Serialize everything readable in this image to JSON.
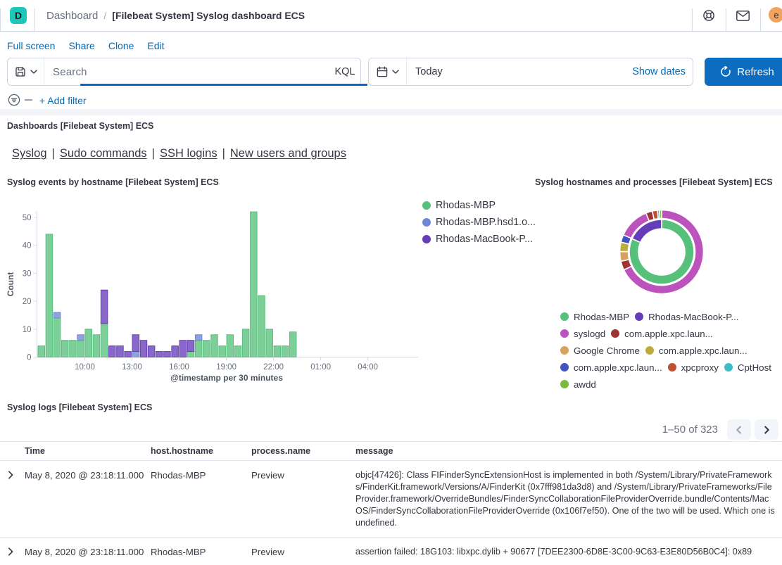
{
  "header": {
    "app_letter": "D",
    "breadcrumb_section": "Dashboard",
    "breadcrumb_separator": "/",
    "breadcrumb_current": "[Filebeat System] Syslog dashboard ECS",
    "avatar_initial": "e",
    "logo_color": "#1dc7b9",
    "avatar_color": "#efa35f"
  },
  "menu_items": [
    "Full screen",
    "Share",
    "Clone",
    "Edit"
  ],
  "query_bar": {
    "placeholder": "Search",
    "language_label": "KQL",
    "date_value": "Today",
    "show_dates_label": "Show dates",
    "refresh_label": "Refresh",
    "add_filter_label": "+ Add filter"
  },
  "markdown_panel": {
    "title": "Dashboards [Filebeat System] ECS",
    "links": [
      "Syslog",
      "Sudo commands",
      "SSH logins",
      "New users and groups"
    ],
    "separator": "|"
  },
  "histogram_panel": {
    "title": "Syslog events by hostname [Filebeat System] ECS",
    "legend": [
      {
        "label": "Rhodas-MBP",
        "color": "#57c17b"
      },
      {
        "label": "Rhodas-MBP.hsd1.o...",
        "color": "#6f87d8"
      },
      {
        "label": "Rhodas-MacBook-P...",
        "color": "#663db8"
      }
    ]
  },
  "pie_panel": {
    "title": "Syslog hostnames and processes [Filebeat System] ECS",
    "legend_rows": [
      [
        {
          "label": "Rhodas-MBP",
          "color": "#57c17b"
        },
        {
          "label": "Rhodas-MacBook-P...",
          "color": "#663db8"
        }
      ],
      [
        {
          "label": "syslogd",
          "color": "#bc52bc"
        },
        {
          "label": "com.apple.xpc.laun...",
          "color": "#9e3533"
        }
      ],
      [
        {
          "label": "Google Chrome",
          "color": "#daa05d"
        },
        {
          "label": "com.apple.xpc.laun...",
          "color": "#bfab3d"
        }
      ],
      [
        {
          "label": "com.apple.xpc.laun...",
          "color": "#4053bf"
        },
        {
          "label": "xpcproxy",
          "color": "#bf4f33"
        },
        {
          "label": "CptHost",
          "color": "#3fbcc9"
        }
      ],
      [
        {
          "label": "awdd",
          "color": "#77bb40"
        }
      ]
    ]
  },
  "table_panel": {
    "title": "Syslog logs [Filebeat System] ECS",
    "pagination_label": "1–50 of 323",
    "columns": [
      "Time",
      "host.hostname",
      "process.name",
      "message"
    ],
    "rows": [
      {
        "time": "May 8, 2020 @ 23:18:11.000",
        "host": "Rhodas-MBP",
        "process": "Preview",
        "message": "objc[47426]: Class FIFinderSyncExtensionHost is implemented in both /System/Library/PrivateFrameworks/FinderKit.framework/Versions/A/FinderKit (0x7fff981da3d8) and /System/Library/PrivateFrameworks/FileProvider.framework/OverrideBundles/FinderSyncCollaborationFileProviderOverride.bundle/Contents/MacOS/FinderSyncCollaborationFileProviderOverride (0x106f7ef50). One of the two will be used. Which one is undefined."
      },
      {
        "time": "May 8, 2020 @ 23:18:11.000",
        "host": "Rhodas-MBP",
        "process": "Preview",
        "message": "assertion failed: 18G103: libxpc.dylib + 90677 [7DEE2300-6D8E-3C00-9C63-E3E80D56B0C4]: 0x89"
      }
    ]
  },
  "chart_data": [
    {
      "type": "bar",
      "title": "Syslog events by hostname [Filebeat System] ECS",
      "stacked": true,
      "xlabel": "@timestamp per 30 minutes",
      "ylabel": "Count",
      "ylim": [
        0,
        55
      ],
      "y_ticks": [
        0,
        10,
        20,
        30,
        40,
        50
      ],
      "x_tick_labels": [
        "10:00",
        "13:00",
        "16:00",
        "19:00",
        "22:00",
        "01:00",
        "04:00"
      ],
      "x_tick_slots": [
        6,
        12,
        18,
        24,
        30,
        36,
        42
      ],
      "categories": [
        "07:00",
        "07:30",
        "08:00",
        "08:30",
        "09:00",
        "09:30",
        "10:00",
        "10:30",
        "11:00",
        "11:30",
        "12:00",
        "12:30",
        "13:00",
        "13:30",
        "14:00",
        "14:30",
        "15:00",
        "15:30",
        "16:00",
        "16:30",
        "17:00",
        "17:30",
        "18:00",
        "18:30",
        "19:00",
        "19:30",
        "20:00",
        "20:30",
        "21:00",
        "21:30",
        "22:00",
        "22:30",
        "23:00"
      ],
      "legend_position": "right",
      "series": [
        {
          "name": "Rhodas-MBP",
          "color": "#57c17b",
          "values": [
            4,
            44,
            14,
            6,
            6,
            6,
            10,
            8,
            12,
            0,
            0,
            0,
            0,
            0,
            0,
            0,
            0,
            0,
            0,
            2,
            6,
            6,
            8,
            4,
            8,
            4,
            10,
            52,
            22,
            10,
            4,
            4,
            9
          ]
        },
        {
          "name": "Rhodas-MBP.hsd1.o...",
          "color": "#6f87d8",
          "values": [
            0,
            0,
            2,
            0,
            0,
            2,
            0,
            0,
            0,
            0,
            0,
            0,
            2,
            0,
            0,
            0,
            0,
            0,
            0,
            0,
            2,
            0,
            0,
            0,
            0,
            0,
            0,
            0,
            0,
            0,
            0,
            0,
            0
          ]
        },
        {
          "name": "Rhodas-MacBook-P...",
          "color": "#663db8",
          "values": [
            0,
            0,
            0,
            0,
            0,
            0,
            0,
            0,
            12,
            4,
            4,
            2,
            6,
            6,
            4,
            2,
            2,
            4,
            6,
            4,
            0,
            0,
            0,
            0,
            0,
            0,
            0,
            0,
            0,
            0,
            0,
            0,
            0
          ]
        }
      ]
    },
    {
      "type": "pie",
      "title": "Syslog hostnames and processes [Filebeat System] ECS",
      "donut": true,
      "legend_position": "bottom",
      "angle_unit": "degrees clockwise from 12 o'clock",
      "rings": [
        {
          "name": "host.hostname",
          "radius": [
            33,
            46
          ],
          "segments": [
            {
              "label": "Rhodas-MBP",
              "color": "#57c17b",
              "start": 0,
              "end": 294
            },
            {
              "label": "Rhodas-MacBook-P...",
              "color": "#663db8",
              "start": 294,
              "end": 360
            }
          ]
        },
        {
          "name": "process.name",
          "radius": [
            47.5,
            59.5
          ],
          "segments": [
            {
              "label": "syslogd",
              "color": "#bc52bc",
              "start": 0,
              "end": 244.5
            },
            {
              "label": "com.apple.xpc.laun...",
              "color": "#9e3533",
              "start": 244.5,
              "end": 257
            },
            {
              "label": "Google Chrome",
              "color": "#daa05d",
              "start": 257,
              "end": 270.5
            },
            {
              "label": "com.apple.xpc.laun...",
              "color": "#bfab3d",
              "start": 270.5,
              "end": 283.5
            },
            {
              "label": "com.apple.xpc.laun...",
              "color": "#4053bf",
              "start": 283.5,
              "end": 294
            },
            {
              "label": "syslogd",
              "color": "#bc52bc",
              "start": 294,
              "end": 338
            },
            {
              "label": "com.apple.xpc.laun...",
              "color": "#9e3533",
              "start": 338,
              "end": 347
            },
            {
              "label": "xpcproxy",
              "color": "#bf4f33",
              "start": 347,
              "end": 354.2
            },
            {
              "label": "CptHost",
              "color": "#3fbcc9",
              "start": 354.2,
              "end": 357
            },
            {
              "label": "awdd",
              "color": "#77bb40",
              "start": 357,
              "end": 360
            }
          ]
        }
      ]
    },
    {
      "type": "table",
      "title": "Syslog logs [Filebeat System] ECS",
      "columns": [
        "Time",
        "host.hostname",
        "process.name",
        "message"
      ],
      "rows": [
        [
          "May 8, 2020 @ 23:18:11.000",
          "Rhodas-MBP",
          "Preview",
          "objc[47426]: Class FIFinderSyncExtensionHost is implemented in both /System/Library/PrivateFrameworks/FinderKit.framework/Versions/A/FinderKit (0x7fff981da3d8) and /System/Library/PrivateFrameworks/FileProvider.framework/OverrideBundles/FinderSyncCollaborationFileProviderOverride.bundle/Contents/MacOS/FinderSyncCollaborationFileProviderOverride (0x106f7ef50). One of the two will be used. Which one is undefined."
        ],
        [
          "May 8, 2020 @ 23:18:11.000",
          "Rhodas-MBP",
          "Preview",
          "assertion failed: 18G103: libxpc.dylib + 90677 [7DEE2300-6D8E-3C00-9C63-E3E80D56B0C4]: 0x89"
        ]
      ]
    }
  ]
}
